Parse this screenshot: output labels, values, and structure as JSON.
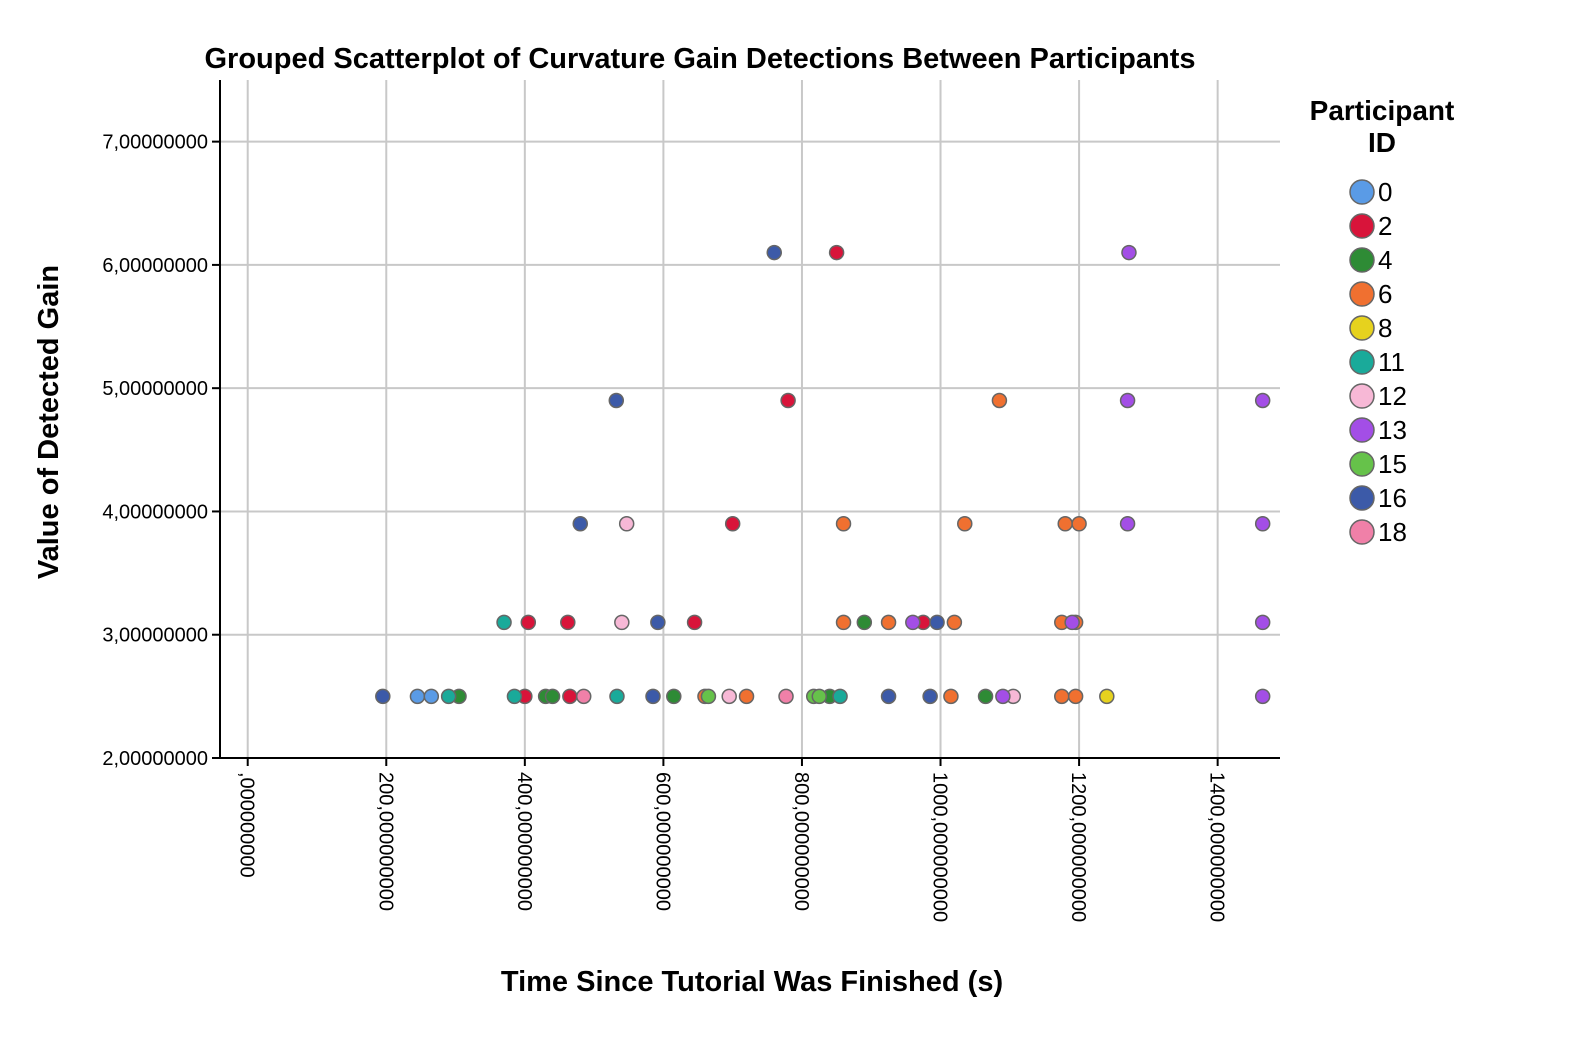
{
  "chart_data": {
    "type": "scatter",
    "title": "Grouped Scatterplot of Curvature Gain Detections Between Participants",
    "xlabel": "Time Since Tutorial Was Finished (s)",
    "ylabel": "Value of Detected Gain",
    "xlim": [
      -40,
      1490
    ],
    "ylim": [
      2.0,
      7.5
    ],
    "x_ticks": [
      0,
      200,
      400,
      600,
      800,
      1000,
      1200,
      1400
    ],
    "x_tick_labels": [
      ",000000000",
      "200,000000000",
      "400,000000000",
      "600,000000000",
      "800,000000000",
      "1000,000000000",
      "1200,000000000",
      "1400,000000000"
    ],
    "y_ticks": [
      2,
      3,
      4,
      5,
      6,
      7
    ],
    "y_tick_labels": [
      "2,00000000",
      "3,00000000",
      "4,00000000",
      "5,00000000",
      "6,00000000",
      "7,00000000"
    ],
    "grid": true,
    "legend": {
      "title_line1": "Participant",
      "title_line2": "ID",
      "placement": "right"
    },
    "series": [
      {
        "name": "0",
        "color": "#5a9be6",
        "points": [
          [
            245,
            2.5
          ],
          [
            265,
            2.5
          ]
        ]
      },
      {
        "name": "2",
        "color": "#d8143a",
        "points": [
          [
            400,
            2.5
          ],
          [
            465,
            2.5
          ],
          [
            405,
            3.1
          ],
          [
            462,
            3.1
          ],
          [
            645,
            3.1
          ],
          [
            700,
            3.9
          ],
          [
            780,
            4.9
          ],
          [
            850,
            6.1
          ],
          [
            975,
            3.1
          ]
        ]
      },
      {
        "name": "4",
        "color": "#2e8b35",
        "points": [
          [
            305,
            2.5
          ],
          [
            430,
            2.5
          ],
          [
            440,
            2.5
          ],
          [
            615,
            2.5
          ],
          [
            840,
            2.5
          ],
          [
            1065,
            2.5
          ],
          [
            890,
            3.1
          ]
        ]
      },
      {
        "name": "6",
        "color": "#f07030",
        "points": [
          [
            660,
            2.5
          ],
          [
            720,
            2.5
          ],
          [
            1015,
            2.5
          ],
          [
            1175,
            2.5
          ],
          [
            1195,
            2.5
          ],
          [
            860,
            3.1
          ],
          [
            925,
            3.1
          ],
          [
            1020,
            3.1
          ],
          [
            1175,
            3.1
          ],
          [
            1195,
            3.1
          ],
          [
            860,
            3.9
          ],
          [
            1035,
            3.9
          ],
          [
            1180,
            3.9
          ],
          [
            1200,
            3.9
          ],
          [
            1085,
            4.9
          ]
        ]
      },
      {
        "name": "8",
        "color": "#e6d21e",
        "points": [
          [
            1240,
            2.5
          ]
        ]
      },
      {
        "name": "11",
        "color": "#1aaa9a",
        "points": [
          [
            290,
            2.5
          ],
          [
            385,
            2.5
          ],
          [
            533,
            2.5
          ],
          [
            855,
            2.5
          ],
          [
            370,
            3.1
          ]
        ]
      },
      {
        "name": "12",
        "color": "#f7b8d6",
        "points": [
          [
            695,
            2.5
          ],
          [
            1105,
            2.5
          ],
          [
            540,
            3.1
          ],
          [
            547,
            3.9
          ]
        ]
      },
      {
        "name": "13",
        "color": "#a34ee6",
        "points": [
          [
            1090,
            2.5
          ],
          [
            1465,
            2.5
          ],
          [
            960,
            3.1
          ],
          [
            1190,
            3.1
          ],
          [
            1465,
            3.1
          ],
          [
            1270,
            3.9
          ],
          [
            1465,
            3.9
          ],
          [
            1270,
            4.9
          ],
          [
            1465,
            4.9
          ],
          [
            1272,
            6.1
          ]
        ]
      },
      {
        "name": "15",
        "color": "#66c24a",
        "points": [
          [
            665,
            2.5
          ],
          [
            817,
            2.5
          ],
          [
            825,
            2.5
          ]
        ]
      },
      {
        "name": "16",
        "color": "#3c5aa8",
        "points": [
          [
            195,
            2.5
          ],
          [
            585,
            2.5
          ],
          [
            925,
            2.5
          ],
          [
            985,
            2.5
          ],
          [
            592,
            3.1
          ],
          [
            995,
            3.1
          ],
          [
            480,
            3.9
          ],
          [
            532,
            4.9
          ],
          [
            760,
            6.1
          ]
        ]
      },
      {
        "name": "18",
        "color": "#f080a8",
        "points": [
          [
            485,
            2.5
          ],
          [
            777,
            2.5
          ]
        ]
      }
    ]
  }
}
